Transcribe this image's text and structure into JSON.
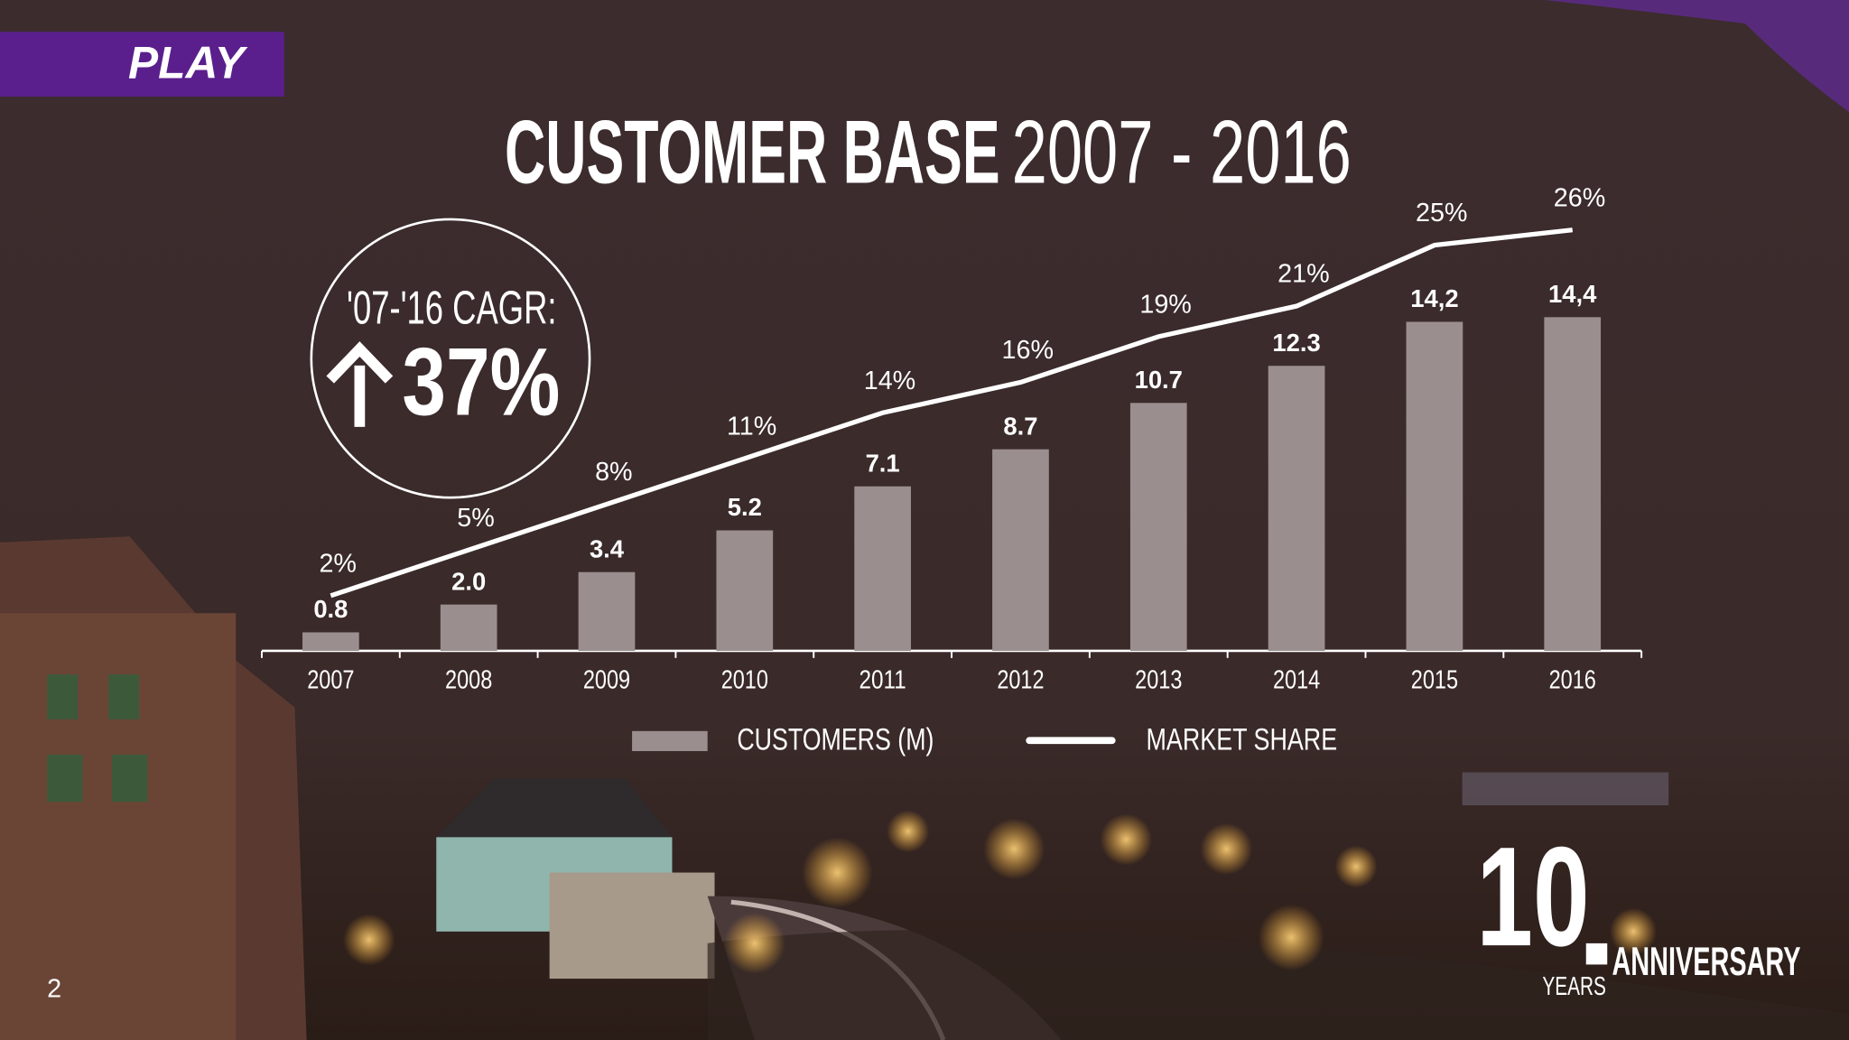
{
  "logo": "PLAY",
  "cagr": {
    "label": "'07-'16 CAGR:",
    "value": "37%"
  },
  "page_number": "2",
  "badge": {
    "number": "10",
    "years": "YEARS",
    "word": "ANNIVERSARY"
  },
  "chart_data": {
    "type": "bar",
    "title": "CUSTOMER BASE",
    "subtitle": "2007 - 2016",
    "categories": [
      "2007",
      "2008",
      "2009",
      "2010",
      "2011",
      "2012",
      "2013",
      "2014",
      "2015",
      "2016"
    ],
    "series": [
      {
        "name": "CUSTOMERS (M)",
        "type": "bar",
        "color": "#9b8e8f",
        "values": [
          0.8,
          2.0,
          3.4,
          5.2,
          7.1,
          8.7,
          10.7,
          12.3,
          14.2,
          14.4
        ],
        "value_labels": [
          "0.8",
          "2.0",
          "3.4",
          "5.2",
          "7.1",
          "8.7",
          "10.7",
          "12.3",
          "14,2",
          "14,4"
        ]
      },
      {
        "name": "MARKET SHARE",
        "type": "line",
        "color": "#ffffff",
        "values": [
          2,
          5,
          8,
          11,
          14,
          16,
          19,
          21,
          25,
          26
        ],
        "value_labels": [
          "2%",
          "5%",
          "8%",
          "11%",
          "14%",
          "16%",
          "19%",
          "21%",
          "25%",
          "26%"
        ]
      }
    ]
  }
}
